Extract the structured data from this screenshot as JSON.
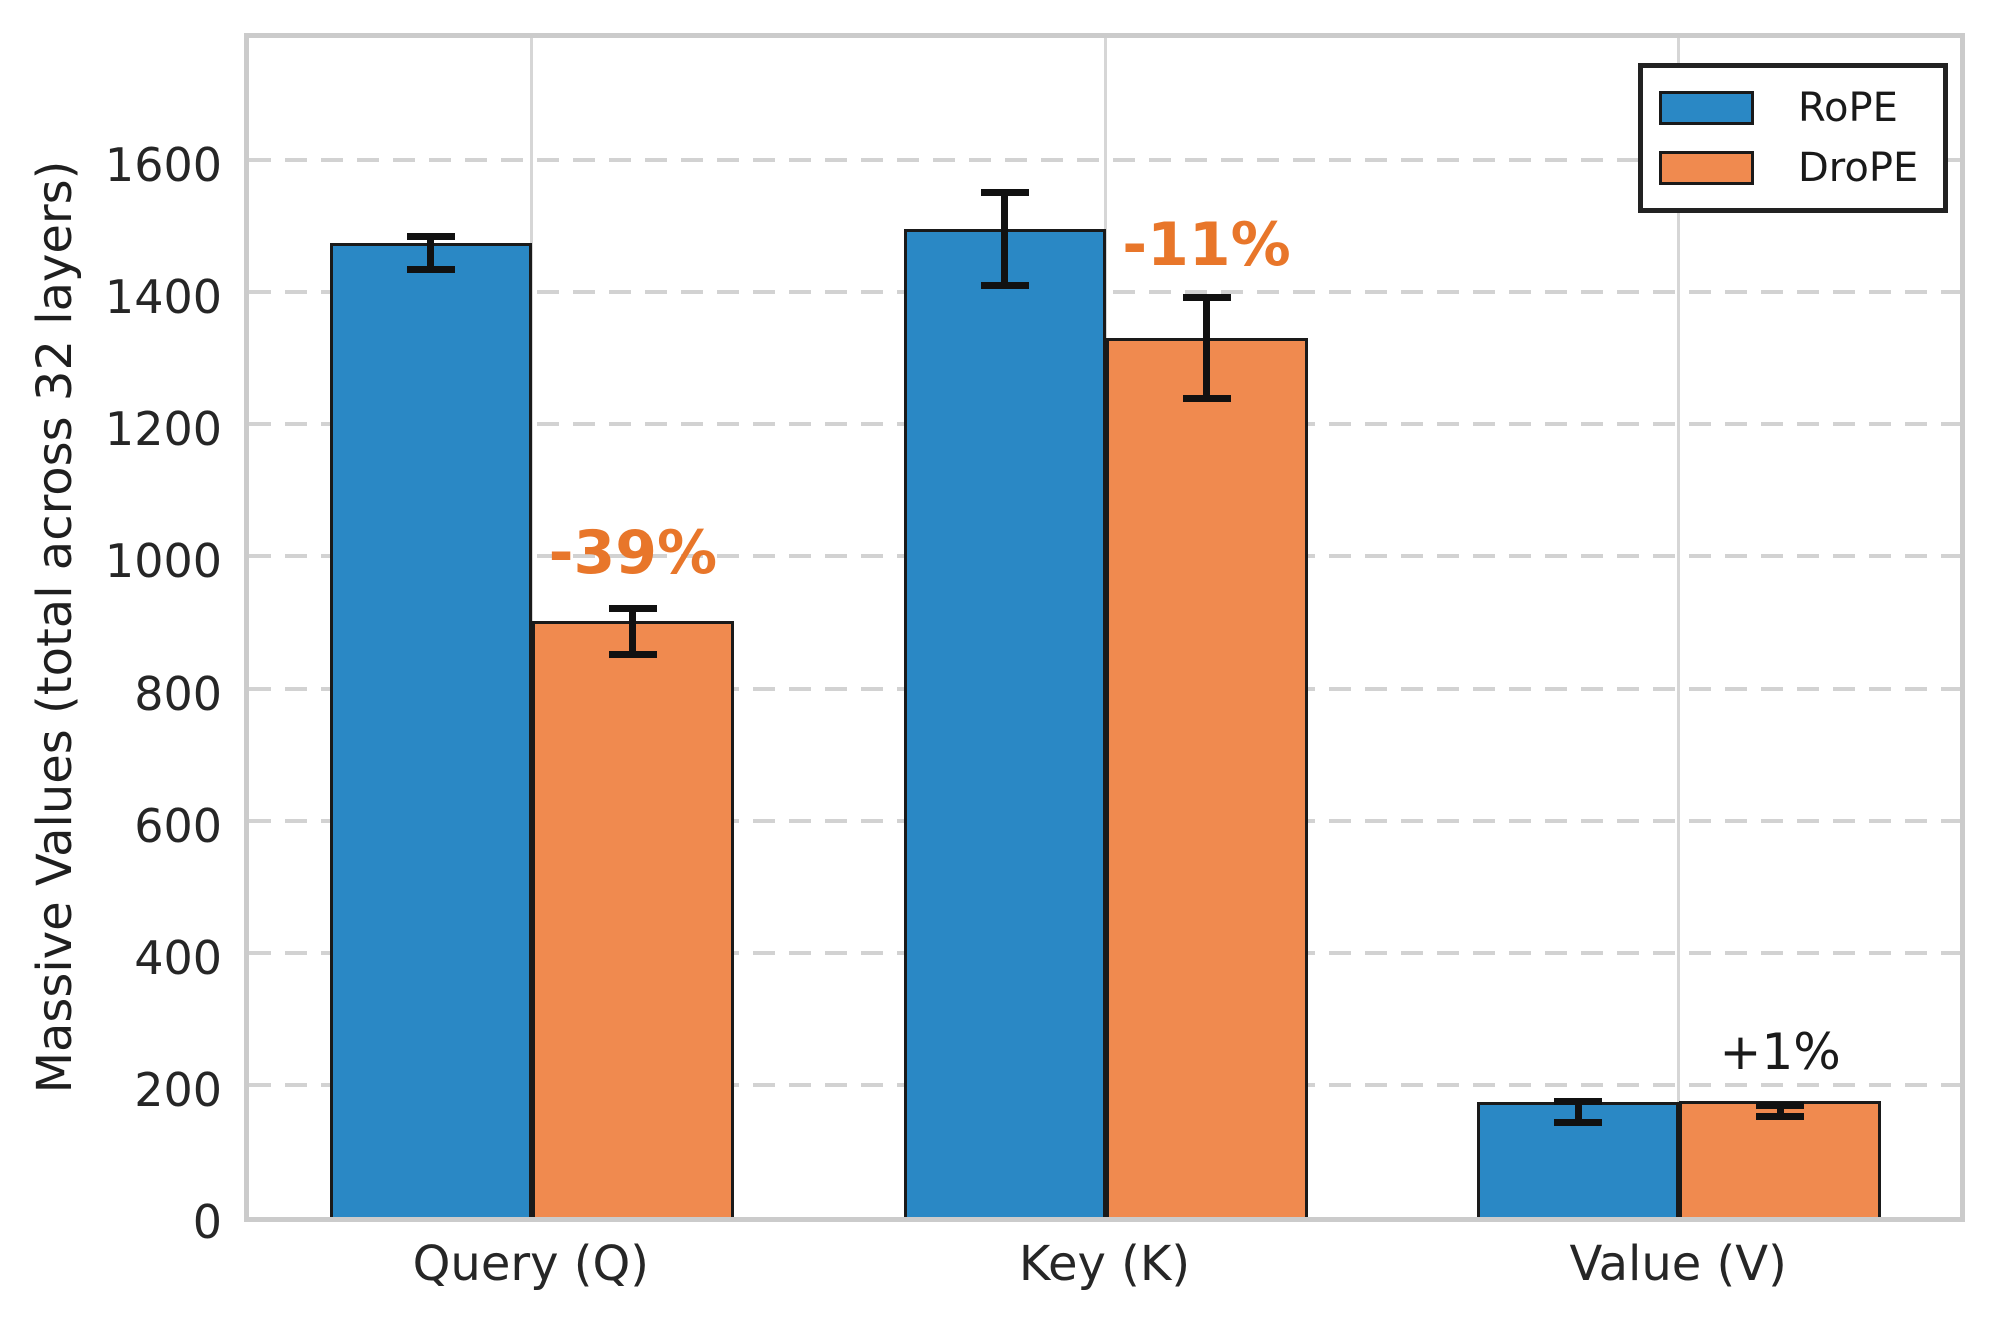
{
  "chart_data": {
    "type": "bar",
    "title": "",
    "xlabel": "",
    "ylabel": "Massive Values (total across 32 layers)",
    "categories": [
      "Query (Q)",
      "Key (K)",
      "Value (V)"
    ],
    "series": [
      {
        "name": "RoPE",
        "color": "#2A88C5",
        "values": [
          1475,
          1496,
          174
        ],
        "errors": [
          25,
          70,
          16
        ]
      },
      {
        "name": "DroPE",
        "color": "#F08A4F",
        "values": [
          902,
          1331,
          176
        ],
        "errors": [
          35,
          76,
          8
        ]
      }
    ],
    "annotations": [
      {
        "text": "-39%",
        "category_index": 0,
        "y": 1020,
        "color": "#E8762A",
        "style": "highlight"
      },
      {
        "text": "-11%",
        "category_index": 1,
        "y": 1487,
        "color": "#E8762A",
        "style": "highlight"
      },
      {
        "text": "+1%",
        "category_index": 2,
        "y": 265,
        "color": "#1A1A1A",
        "style": "plain"
      }
    ],
    "yticks": [
      0,
      200,
      400,
      600,
      800,
      1000,
      1200,
      1400,
      1600
    ],
    "ylim": [
      0,
      1800
    ],
    "grid": {
      "horizontal": "dashed",
      "vertical": "solid"
    },
    "legend": {
      "position": "upper right"
    },
    "colors": {
      "bar_edge": "#1a1a1a",
      "error_bar": "#111111",
      "gridline": "#d2d2d2",
      "spine": "#cbcbcb",
      "tick_text": "#262626"
    }
  }
}
